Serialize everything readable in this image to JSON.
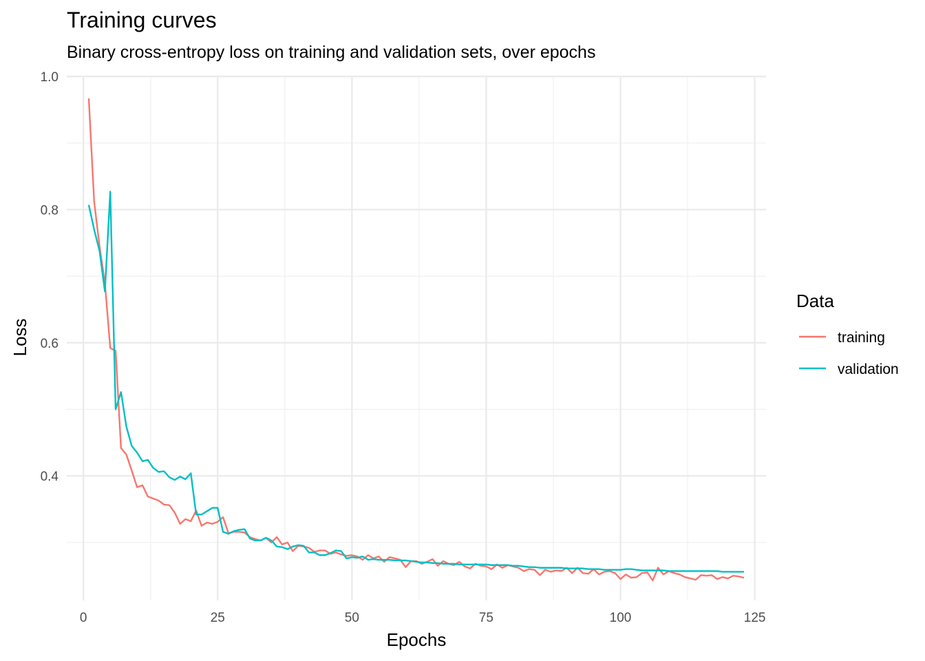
{
  "chart_data": {
    "type": "line",
    "title": "Training curves",
    "subtitle": "Binary cross-entropy loss on training and validation sets, over epochs",
    "xlabel": "Epochs",
    "ylabel": "Loss",
    "xlim": [
      -3.1,
      127.1
    ],
    "ylim": [
      0.213,
      1.0
    ],
    "x_major_ticks": [
      0,
      25,
      50,
      75,
      100,
      125
    ],
    "x_tick_labels": [
      "0",
      "25",
      "50",
      "75",
      "100",
      "125"
    ],
    "y_major_ticks": [
      0.4,
      0.6,
      0.8,
      1.0
    ],
    "y_tick_labels": [
      "0.4",
      "0.6",
      "0.8",
      "1.0"
    ],
    "grid": true,
    "legend": {
      "title": "Data",
      "position": "right"
    },
    "series": [
      {
        "name": "training",
        "color": "#F8766D",
        "x": [
          1,
          2,
          3,
          4,
          5,
          6,
          7,
          8,
          9,
          10,
          11,
          12,
          13,
          14,
          15,
          16,
          17,
          18,
          19,
          20,
          21,
          22,
          23,
          24,
          25,
          26,
          27,
          28,
          29,
          30,
          31,
          32,
          33,
          34,
          35,
          36,
          37,
          38,
          39,
          40,
          41,
          42,
          43,
          44,
          45,
          46,
          47,
          48,
          49,
          50,
          51,
          52,
          53,
          54,
          55,
          56,
          57,
          58,
          59,
          60,
          61,
          62,
          63,
          64,
          65,
          66,
          67,
          68,
          69,
          70,
          71,
          72,
          73,
          74,
          75,
          76,
          77,
          78,
          79,
          80,
          81,
          82,
          83,
          84,
          85,
          86,
          87,
          88,
          89,
          90,
          91,
          92,
          93,
          94,
          95,
          96,
          97,
          98,
          99,
          100,
          101,
          102,
          103,
          104,
          105,
          106,
          107,
          108,
          109,
          110,
          111,
          112,
          113,
          114,
          115,
          116,
          117,
          118,
          119,
          120,
          121,
          122,
          123
        ],
        "values": [
          0.967,
          0.812,
          0.745,
          0.69,
          0.592,
          0.588,
          0.442,
          0.432,
          0.408,
          0.383,
          0.386,
          0.369,
          0.366,
          0.363,
          0.357,
          0.356,
          0.345,
          0.328,
          0.335,
          0.332,
          0.348,
          0.325,
          0.33,
          0.328,
          0.331,
          0.338,
          0.314,
          0.316,
          0.316,
          0.315,
          0.308,
          0.305,
          0.303,
          0.307,
          0.3,
          0.308,
          0.297,
          0.3,
          0.287,
          0.295,
          0.294,
          0.292,
          0.286,
          0.288,
          0.288,
          0.283,
          0.285,
          0.282,
          0.28,
          0.281,
          0.279,
          0.274,
          0.281,
          0.276,
          0.279,
          0.271,
          0.278,
          0.276,
          0.274,
          0.263,
          0.272,
          0.272,
          0.268,
          0.271,
          0.275,
          0.265,
          0.272,
          0.268,
          0.266,
          0.271,
          0.264,
          0.261,
          0.268,
          0.265,
          0.264,
          0.26,
          0.267,
          0.262,
          0.266,
          0.264,
          0.262,
          0.257,
          0.26,
          0.259,
          0.251,
          0.259,
          0.256,
          0.258,
          0.257,
          0.262,
          0.254,
          0.262,
          0.254,
          0.253,
          0.26,
          0.252,
          0.256,
          0.257,
          0.254,
          0.245,
          0.252,
          0.247,
          0.248,
          0.254,
          0.255,
          0.243,
          0.262,
          0.252,
          0.257,
          0.254,
          0.252,
          0.248,
          0.246,
          0.244,
          0.251,
          0.25,
          0.251,
          0.245,
          0.248,
          0.246,
          0.25,
          0.249,
          0.247
        ]
      },
      {
        "name": "validation",
        "color": "#00BFC4",
        "x": [
          1,
          2,
          3,
          4,
          5,
          6,
          7,
          8,
          9,
          10,
          11,
          12,
          13,
          14,
          15,
          16,
          17,
          18,
          19,
          20,
          21,
          22,
          23,
          24,
          25,
          26,
          27,
          28,
          29,
          30,
          31,
          32,
          33,
          34,
          35,
          36,
          37,
          38,
          39,
          40,
          41,
          42,
          43,
          44,
          45,
          46,
          47,
          48,
          49,
          50,
          51,
          52,
          53,
          54,
          55,
          56,
          57,
          58,
          59,
          60,
          61,
          62,
          63,
          64,
          65,
          66,
          67,
          68,
          69,
          70,
          71,
          72,
          73,
          74,
          75,
          76,
          77,
          78,
          79,
          80,
          81,
          82,
          83,
          84,
          85,
          86,
          87,
          88,
          89,
          90,
          91,
          92,
          93,
          94,
          95,
          96,
          97,
          98,
          99,
          100,
          101,
          102,
          103,
          104,
          105,
          106,
          107,
          108,
          109,
          110,
          111,
          112,
          113,
          114,
          115,
          116,
          117,
          118,
          119,
          120,
          121,
          122,
          123
        ],
        "values": [
          0.807,
          0.77,
          0.738,
          0.677,
          0.827,
          0.5,
          0.526,
          0.474,
          0.445,
          0.435,
          0.422,
          0.424,
          0.412,
          0.406,
          0.407,
          0.398,
          0.394,
          0.399,
          0.395,
          0.404,
          0.342,
          0.342,
          0.347,
          0.352,
          0.352,
          0.316,
          0.313,
          0.317,
          0.319,
          0.32,
          0.306,
          0.303,
          0.303,
          0.307,
          0.303,
          0.294,
          0.293,
          0.29,
          0.294,
          0.296,
          0.295,
          0.285,
          0.285,
          0.281,
          0.281,
          0.284,
          0.288,
          0.287,
          0.276,
          0.278,
          0.277,
          0.279,
          0.274,
          0.275,
          0.274,
          0.274,
          0.274,
          0.273,
          0.273,
          0.273,
          0.272,
          0.271,
          0.27,
          0.27,
          0.269,
          0.269,
          0.268,
          0.268,
          0.268,
          0.267,
          0.267,
          0.267,
          0.267,
          0.267,
          0.267,
          0.266,
          0.266,
          0.266,
          0.266,
          0.265,
          0.265,
          0.264,
          0.263,
          0.263,
          0.262,
          0.262,
          0.262,
          0.262,
          0.262,
          0.261,
          0.261,
          0.261,
          0.261,
          0.26,
          0.26,
          0.26,
          0.259,
          0.259,
          0.259,
          0.259,
          0.26,
          0.26,
          0.259,
          0.258,
          0.258,
          0.258,
          0.258,
          0.258,
          0.257,
          0.257,
          0.257,
          0.257,
          0.257,
          0.257,
          0.257,
          0.257,
          0.257,
          0.257,
          0.256,
          0.256,
          0.256,
          0.256,
          0.256
        ]
      }
    ]
  }
}
